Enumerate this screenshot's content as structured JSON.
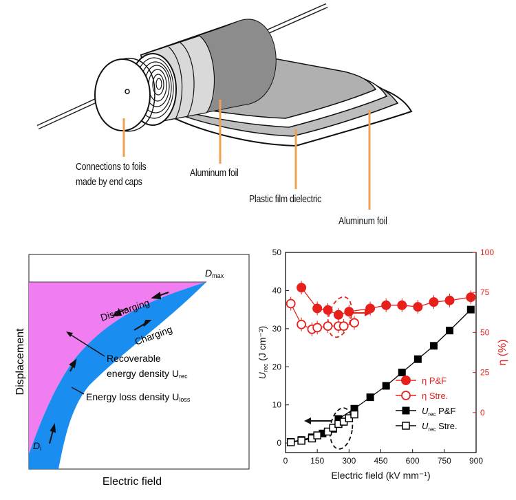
{
  "capacitor": {
    "labels": {
      "connections_line1": "Connections to foils",
      "connections_line2": "made by end caps",
      "aluminum_foil_1": "Aluminum foil",
      "dielectric": "Plastic film dielectric",
      "aluminum_foil_2": "Aluminum foil"
    }
  },
  "field_diagram": {
    "d_max": "D",
    "d_max_sub": "max",
    "d_i": "D",
    "d_i_sub": "i",
    "discharging": "Discharging",
    "charging": "Charging",
    "recoverable_line1": "Recoverable",
    "recoverable_line2": "energy density U",
    "recoverable_sub": "rec",
    "loss": "Energy loss density U",
    "loss_sub": "loss",
    "y_axis": "Displacement",
    "x_axis": "Electric field",
    "colors": {
      "recoverable": "#f07ef0",
      "loss": "#1a8ef0"
    }
  },
  "chart_data": {
    "type": "scatter",
    "xlabel": "Electric field (kV mm⁻¹)",
    "ylabel_left": "U_rec (J cm⁻³)",
    "ylabel_right": "η (%)",
    "xlim": [
      0,
      900
    ],
    "ylim_left": [
      -2.5,
      50
    ],
    "ylim_right": [
      -25,
      100
    ],
    "x_ticks": [
      0,
      150,
      300,
      450,
      600,
      750,
      900
    ],
    "y_ticks_left": [
      0,
      10,
      20,
      30,
      40,
      50
    ],
    "y_ticks_right": [
      0,
      25,
      50,
      75,
      100
    ],
    "series": [
      {
        "name": "η P&F",
        "axis": "right",
        "marker": "filled-circle",
        "color": "#e8201c",
        "x": [
          75,
          150,
          200,
          250,
          300,
          400,
          475,
          550,
          625,
          700,
          775,
          875
        ],
        "y": [
          78,
          65,
          64,
          61,
          63,
          65,
          67,
          67,
          66,
          69,
          70,
          72
        ]
      },
      {
        "name": "η Stre.",
        "axis": "right",
        "marker": "open-circle",
        "color": "#e8201c",
        "x": [
          25,
          75,
          125,
          150,
          200,
          250,
          275,
          325
        ],
        "y": [
          68,
          55,
          52,
          53,
          54,
          54,
          54,
          56
        ]
      },
      {
        "name": "U_rec P&F",
        "axis": "left",
        "marker": "filled-square",
        "color": "#000000",
        "x": [
          25,
          75,
          125,
          175,
          225,
          250,
          325,
          400,
          475,
          550,
          625,
          700,
          775,
          875
        ],
        "y": [
          0.3,
          0.8,
          1.5,
          2.5,
          3.7,
          6.3,
          9,
          12,
          15,
          18.5,
          22,
          25.5,
          29.5,
          35
        ]
      },
      {
        "name": "U_rec Stre.",
        "axis": "left",
        "marker": "open-square",
        "color": "#000000",
        "x": [
          25,
          75,
          125,
          150,
          200,
          225,
          250,
          275,
          300,
          325
        ],
        "y": [
          0.2,
          0.6,
          1.2,
          2.0,
          3.0,
          4.0,
          5.0,
          5.6,
          6.5,
          7.5
        ]
      }
    ],
    "legend": [
      {
        "text": "η P&F",
        "marker": "filled-circle"
      },
      {
        "text": "η Stre.",
        "marker": "open-circle"
      },
      {
        "text": "P&F",
        "prefix": "U",
        "sub": "rec",
        "marker": "filled-square"
      },
      {
        "text": "Stre.",
        "prefix": "U",
        "sub": "rec",
        "marker": "open-square"
      }
    ],
    "legend_position": "bottom-right"
  }
}
